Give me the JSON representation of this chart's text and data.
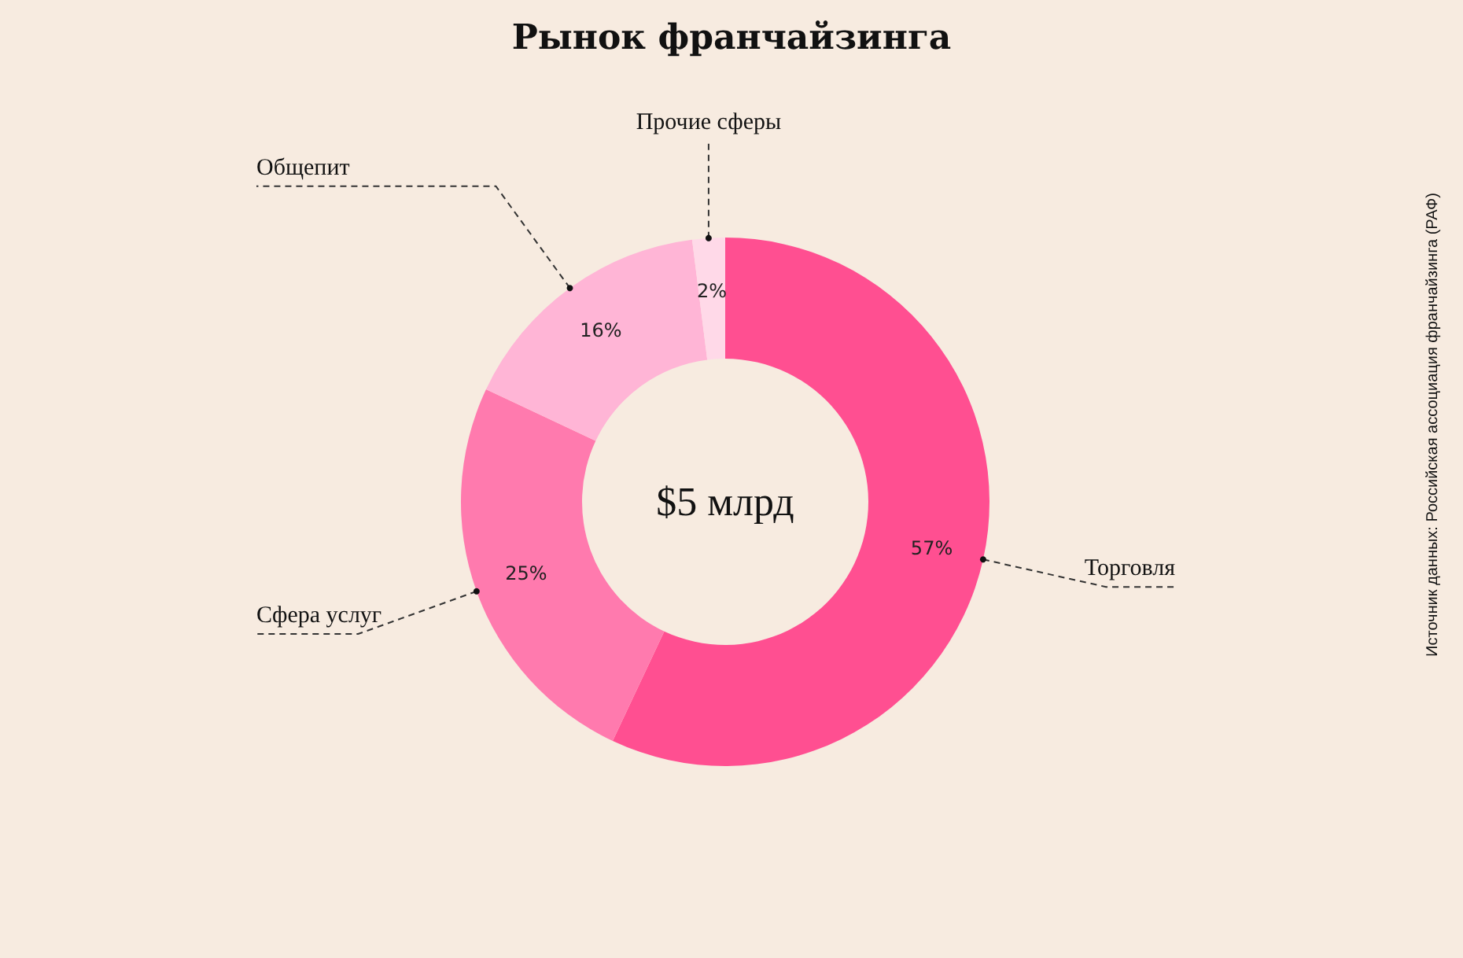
{
  "chart_data": {
    "type": "donut",
    "title": "Рынок франчайзинга",
    "categories": [
      "Торговля",
      "Сфера услуг",
      "Общепит",
      "Прочие сферы"
    ],
    "values": [
      57,
      25,
      16,
      2
    ],
    "colors": [
      "#ff4f91",
      "#ff7aae",
      "#ffb5d6",
      "#ffd9e8"
    ],
    "value_labels": [
      "57%",
      "25%",
      "16%",
      "2%"
    ],
    "annotations": [
      "$5 млрд",
      "Источник данных: Российская ассоциация франчайзинга (РАФ)"
    ],
    "legend": false
  }
}
